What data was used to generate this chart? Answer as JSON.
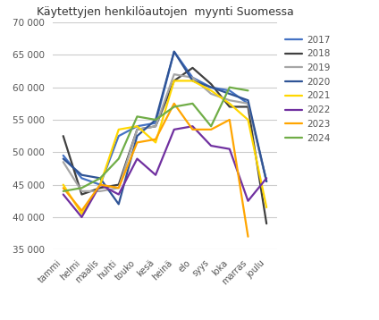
{
  "title": "Käytettyjen henkilöautojen  myynti Suomessa",
  "months": [
    "tammi",
    "helmi",
    "maalis",
    "huhti",
    "touko",
    "kesä",
    "heinä",
    "elo",
    "syys",
    "loka",
    "marras",
    "joulu"
  ],
  "series": {
    "2017": [
      49500,
      46000,
      45000,
      52500,
      54000,
      54500,
      65500,
      61500,
      60000,
      59500,
      57500,
      45500
    ],
    "2018": [
      52500,
      43500,
      44500,
      45000,
      53500,
      54000,
      61000,
      63000,
      60500,
      57000,
      57000,
      39000
    ],
    "2019": [
      48500,
      44000,
      44000,
      44500,
      53500,
      54000,
      62000,
      61500,
      59000,
      58000,
      57500,
      45500
    ],
    "2020": [
      49000,
      46500,
      46000,
      42000,
      52500,
      55000,
      65500,
      61000,
      60000,
      59000,
      58000,
      45500
    ],
    "2021": [
      45000,
      40500,
      45000,
      53500,
      54000,
      51500,
      61000,
      61000,
      59500,
      57500,
      55000,
      41500
    ],
    "2022": [
      43500,
      40000,
      45000,
      43500,
      49000,
      46500,
      53500,
      54000,
      51000,
      50500,
      42500,
      46000
    ],
    "2023": [
      44500,
      41000,
      45000,
      44500,
      51500,
      52000,
      57500,
      53500,
      53500,
      55000,
      37000,
      null
    ],
    "2024": [
      44000,
      44500,
      46000,
      49000,
      55500,
      55000,
      57000,
      57500,
      54000,
      60000,
      59500,
      null
    ]
  },
  "colors": {
    "2017": "#4472C4",
    "2018": "#404040",
    "2019": "#A6A6A6",
    "2020": "#2F5496",
    "2021": "#FFD700",
    "2022": "#7030A0",
    "2023": "#FFA500",
    "2024": "#70AD47"
  },
  "ylim": [
    35000,
    70000
  ],
  "yticks": [
    35000,
    40000,
    45000,
    50000,
    55000,
    60000,
    65000,
    70000
  ],
  "background_color": "#ffffff",
  "grid_color": "#cccccc"
}
